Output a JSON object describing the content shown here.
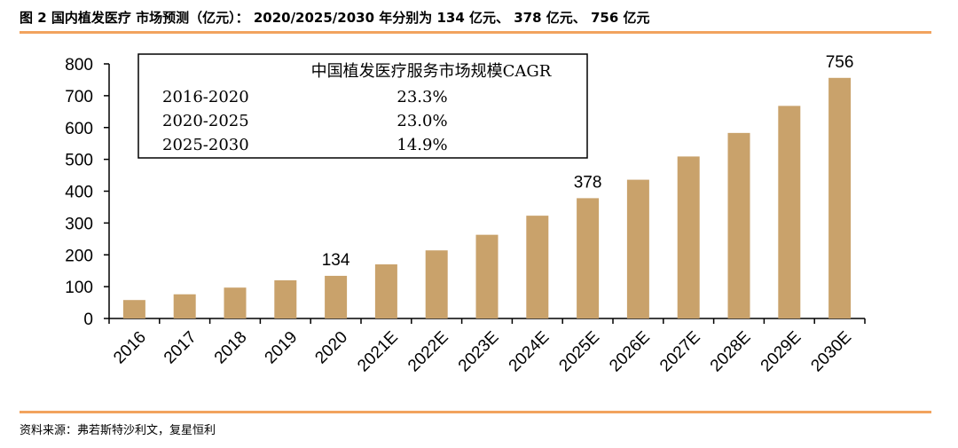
{
  "figure_title": "图 2 国内植发医疗  市场预测（亿元）：  2020/2025/2030 年分别为 134 亿元、  378 亿元、  756 亿元",
  "source": "资料来源：弗若斯特沙利文，复星恒利",
  "colors": {
    "bar": "#C9A26B",
    "rule": "#F2A35E",
    "axis": "#000000"
  },
  "chart_data": {
    "type": "bar",
    "categories": [
      "2016",
      "2017",
      "2018",
      "2019",
      "2020",
      "2021E",
      "2022E",
      "2023E",
      "2024E",
      "2025E",
      "2026E",
      "2027E",
      "2028E",
      "2029E",
      "2030E"
    ],
    "values": [
      58,
      76,
      97,
      120,
      134,
      170,
      214,
      263,
      323,
      378,
      436,
      509,
      583,
      668,
      756
    ],
    "data_labels": [
      {
        "category": "2020",
        "text": "134"
      },
      {
        "category": "2025E",
        "text": "378"
      },
      {
        "category": "2030E",
        "text": "756"
      }
    ],
    "ylim": [
      0,
      800
    ],
    "yticks": [
      0,
      100,
      200,
      300,
      400,
      500,
      600,
      700,
      800
    ],
    "grid": false,
    "legend": "none"
  },
  "cagr_table": {
    "title": "中国植发医疗服务市场规模CAGR",
    "rows": [
      {
        "period": "2016-2020",
        "value": "23.3%"
      },
      {
        "period": "2020-2025",
        "value": "23.0%"
      },
      {
        "period": "2025-2030",
        "value": "14.9%"
      }
    ]
  }
}
